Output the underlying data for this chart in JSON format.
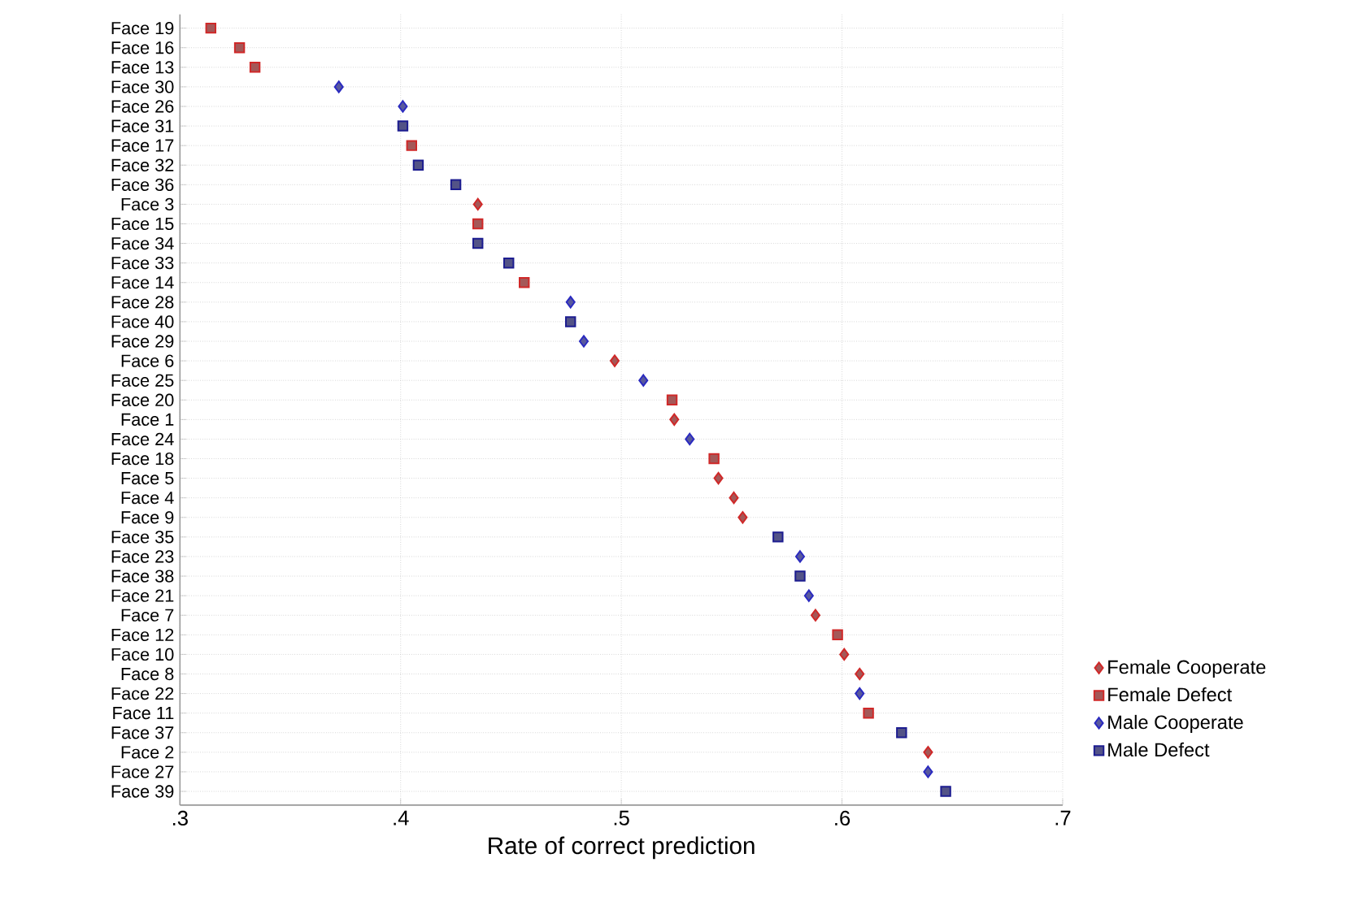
{
  "chart_data": {
    "type": "scatter",
    "orientation": "horizontal",
    "xlabel": "Rate of correct prediction",
    "categories": [
      "Face 19",
      "Face 16",
      "Face 13",
      "Face 30",
      "Face 26",
      "Face 31",
      "Face 17",
      "Face 32",
      "Face 36",
      "Face 3",
      "Face 15",
      "Face 34",
      "Face 33",
      "Face 14",
      "Face 28",
      "Face 40",
      "Face 29",
      "Face 6",
      "Face 25",
      "Face 20",
      "Face 1",
      "Face 24",
      "Face 18",
      "Face 5",
      "Face 4",
      "Face 9",
      "Face 35",
      "Face 23",
      "Face 38",
      "Face 21",
      "Face 7",
      "Face 12",
      "Face 10",
      "Face 8",
      "Face 22",
      "Face 11",
      "Face 37",
      "Face 2",
      "Face 27",
      "Face 39"
    ],
    "xlim": [
      0.3,
      0.7
    ],
    "xticks": [
      {
        "value": 0.3,
        "label": ".3"
      },
      {
        "value": 0.4,
        "label": ".4"
      },
      {
        "value": 0.5,
        "label": ".5"
      },
      {
        "value": 0.6,
        "label": ".6"
      },
      {
        "value": 0.7,
        "label": ".7"
      }
    ],
    "grid": true,
    "legend": "right",
    "series": [
      {
        "name": "Female Cooperate",
        "color": "#d02828",
        "marker": "diamond",
        "values": [
          null,
          null,
          null,
          null,
          null,
          null,
          null,
          null,
          null,
          0.435,
          null,
          null,
          null,
          null,
          null,
          null,
          null,
          0.497,
          null,
          null,
          0.524,
          null,
          null,
          0.544,
          0.551,
          0.555,
          null,
          null,
          null,
          null,
          0.588,
          null,
          0.601,
          0.608,
          null,
          null,
          null,
          0.639,
          null,
          null
        ]
      },
      {
        "name": "Female Defect",
        "color": "#d02828",
        "marker": "square",
        "values": [
          0.314,
          0.327,
          0.334,
          null,
          null,
          null,
          0.405,
          null,
          null,
          null,
          0.435,
          null,
          null,
          0.456,
          null,
          null,
          null,
          null,
          null,
          0.523,
          null,
          null,
          0.542,
          null,
          null,
          null,
          null,
          null,
          null,
          null,
          null,
          0.598,
          null,
          null,
          null,
          0.612,
          null,
          null,
          null,
          null
        ]
      },
      {
        "name": "Male Cooperate",
        "color": "#2a2ac0",
        "marker": "diamond",
        "values": [
          null,
          null,
          null,
          0.372,
          0.401,
          null,
          null,
          null,
          null,
          null,
          null,
          null,
          null,
          null,
          0.477,
          null,
          0.483,
          null,
          0.51,
          null,
          null,
          0.531,
          null,
          null,
          null,
          null,
          null,
          0.581,
          null,
          0.585,
          null,
          null,
          null,
          null,
          0.608,
          null,
          null,
          null,
          0.639,
          null
        ]
      },
      {
        "name": "Male Defect",
        "color": "#1c1c90",
        "marker": "square",
        "values": [
          null,
          null,
          null,
          null,
          null,
          0.401,
          null,
          0.408,
          0.425,
          null,
          null,
          0.435,
          0.449,
          null,
          null,
          0.477,
          null,
          null,
          null,
          null,
          null,
          null,
          null,
          null,
          null,
          null,
          0.571,
          null,
          0.581,
          null,
          null,
          null,
          null,
          null,
          null,
          null,
          0.627,
          null,
          null,
          0.647
        ]
      }
    ]
  }
}
